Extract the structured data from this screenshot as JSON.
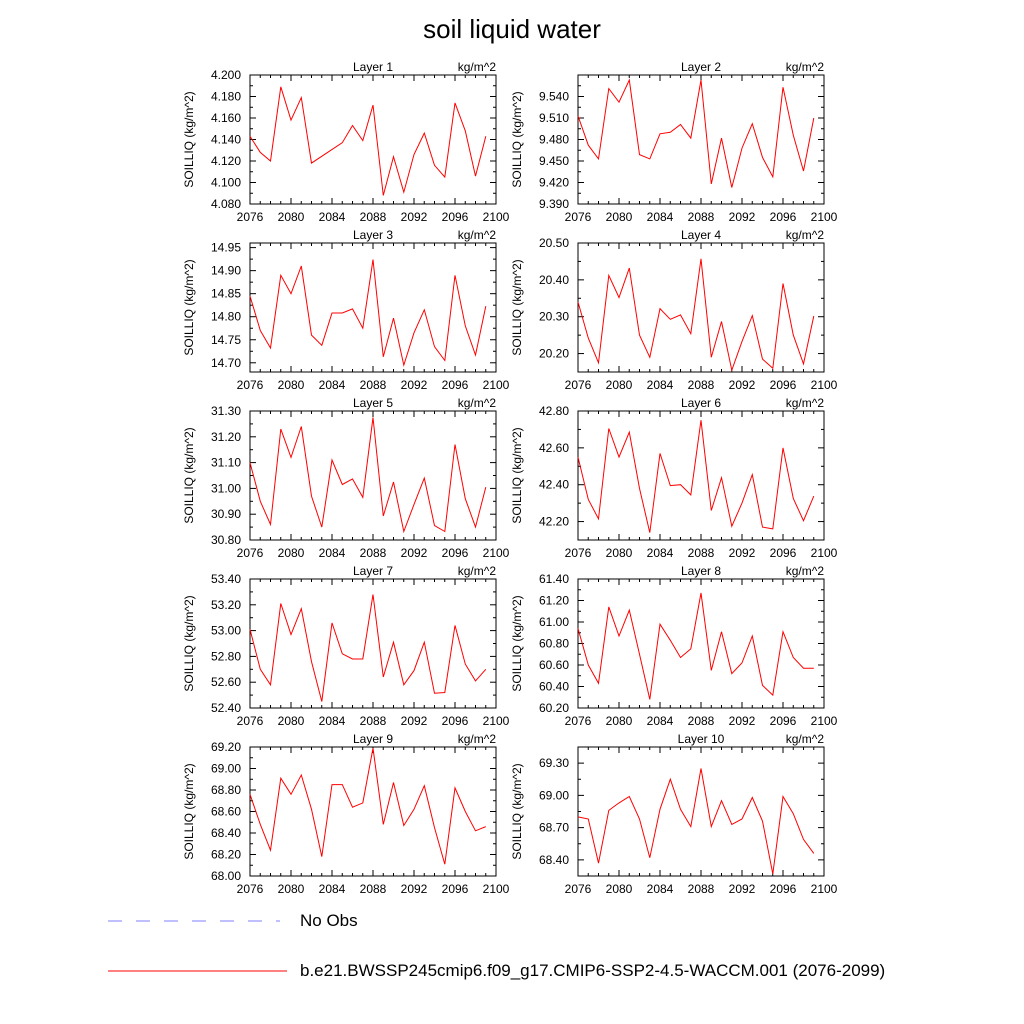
{
  "title": "soil liquid water",
  "colors": {
    "model_line": "#ff0000",
    "obs_line": "#8080ff",
    "axis": "#000000"
  },
  "legend": {
    "obs_label": "No Obs",
    "model_label": "b.e21.BWSSP245cmip6.f09_g17.CMIP6-SSP2-4.5-WACCM.001 (2076-2099)"
  },
  "chart_data": [
    {
      "type": "line",
      "title": "Layer 1",
      "units": "kg/m^2",
      "ylabel": "SOILLIQ  (kg/m^2)",
      "xlim": [
        2076,
        2100
      ],
      "xticks": [
        "2076",
        "2080",
        "2084",
        "2088",
        "2092",
        "2096",
        "2100"
      ],
      "ylim": [
        4.08,
        4.2
      ],
      "yticks": [
        "4.080",
        "4.100",
        "4.120",
        "4.140",
        "4.160",
        "4.180",
        "4.200"
      ],
      "x": [
        2076,
        2077,
        2078,
        2079,
        2080,
        2081,
        2082,
        2085,
        2086,
        2087,
        2088,
        2089,
        2090,
        2091,
        2092,
        2093,
        2094,
        2095,
        2096,
        2097,
        2098,
        2099
      ],
      "values": [
        4.143,
        4.128,
        4.12,
        4.189,
        4.158,
        4.179,
        4.118,
        4.137,
        4.153,
        4.139,
        4.172,
        4.088,
        4.124,
        4.091,
        4.126,
        4.146,
        4.116,
        4.105,
        4.174,
        4.148,
        4.106,
        4.143
      ]
    },
    {
      "type": "line",
      "title": "Layer 2",
      "units": "kg/m^2",
      "ylabel": "SOILLIQ  (kg/m^2)",
      "xlim": [
        2076,
        2100
      ],
      "xticks": [
        "2076",
        "2080",
        "2084",
        "2088",
        "2092",
        "2096",
        "2100"
      ],
      "ylim": [
        9.39,
        9.57
      ],
      "yticks": [
        "9.390",
        "9.420",
        "9.450",
        "9.480",
        "9.510",
        "9.540"
      ],
      "x": [
        2076,
        2077,
        2078,
        2079,
        2080,
        2081,
        2082,
        2083,
        2084,
        2085,
        2086,
        2087,
        2088,
        2089,
        2090,
        2091,
        2092,
        2093,
        2094,
        2095,
        2096,
        2097,
        2098,
        2099
      ],
      "values": [
        9.513,
        9.472,
        9.453,
        9.551,
        9.532,
        9.563,
        9.459,
        9.453,
        9.488,
        9.49,
        9.501,
        9.482,
        9.563,
        9.418,
        9.482,
        9.413,
        9.468,
        9.502,
        9.455,
        9.428,
        9.553,
        9.486,
        9.436,
        9.51
      ]
    },
    {
      "type": "line",
      "title": "Layer 3",
      "units": "kg/m^2",
      "ylabel": "SOILLIQ  (kg/m^2)",
      "xlim": [
        2076,
        2100
      ],
      "xticks": [
        "2076",
        "2080",
        "2084",
        "2088",
        "2092",
        "2096",
        "2100"
      ],
      "ylim": [
        14.68,
        14.96
      ],
      "yticks": [
        "14.70",
        "14.75",
        "14.80",
        "14.85",
        "14.90",
        "14.95"
      ],
      "x": [
        2076,
        2077,
        2078,
        2079,
        2080,
        2081,
        2082,
        2083,
        2084,
        2085,
        2086,
        2087,
        2088,
        2089,
        2090,
        2091,
        2092,
        2093,
        2094,
        2095,
        2096,
        2097,
        2098,
        2099
      ],
      "values": [
        14.845,
        14.77,
        14.732,
        14.89,
        14.85,
        14.91,
        14.76,
        14.738,
        14.808,
        14.808,
        14.817,
        14.775,
        14.924,
        14.713,
        14.797,
        14.695,
        14.765,
        14.815,
        14.735,
        14.705,
        14.89,
        14.78,
        14.717,
        14.823
      ]
    },
    {
      "type": "line",
      "title": "Layer 4",
      "units": "kg/m^2",
      "ylabel": "SOILLIQ  (kg/m^2)",
      "xlim": [
        2076,
        2100
      ],
      "xticks": [
        "2076",
        "2080",
        "2084",
        "2088",
        "2092",
        "2096",
        "2100"
      ],
      "ylim": [
        20.15,
        20.5
      ],
      "yticks": [
        "20.20",
        "20.30",
        "20.40",
        "20.50"
      ],
      "x": [
        2076,
        2077,
        2078,
        2079,
        2080,
        2081,
        2082,
        2083,
        2084,
        2085,
        2086,
        2087,
        2088,
        2089,
        2090,
        2091,
        2092,
        2093,
        2094,
        2095,
        2096,
        2097,
        2098,
        2099
      ],
      "values": [
        20.34,
        20.242,
        20.175,
        20.412,
        20.352,
        20.432,
        20.25,
        20.19,
        20.322,
        20.293,
        20.305,
        20.254,
        20.457,
        20.19,
        20.287,
        20.155,
        20.233,
        20.303,
        20.185,
        20.16,
        20.39,
        20.25,
        20.172,
        20.302
      ]
    },
    {
      "type": "line",
      "title": "Layer 5",
      "units": "kg/m^2",
      "ylabel": "SOILLIQ  (kg/m^2)",
      "xlim": [
        2076,
        2100
      ],
      "xticks": [
        "2076",
        "2080",
        "2084",
        "2088",
        "2092",
        "2096",
        "2100"
      ],
      "ylim": [
        30.8,
        31.3
      ],
      "yticks": [
        "30.80",
        "30.90",
        "31.00",
        "31.10",
        "31.20",
        "31.30"
      ],
      "x": [
        2076,
        2077,
        2078,
        2079,
        2080,
        2081,
        2082,
        2083,
        2084,
        2085,
        2086,
        2087,
        2088,
        2089,
        2090,
        2091,
        2092,
        2093,
        2094,
        2095,
        2096,
        2097,
        2098,
        2099
      ],
      "values": [
        31.1,
        30.95,
        30.86,
        31.23,
        31.12,
        31.24,
        30.97,
        30.85,
        31.11,
        31.015,
        31.037,
        30.965,
        31.275,
        30.893,
        31.025,
        30.833,
        30.938,
        31.04,
        30.856,
        30.833,
        31.17,
        30.96,
        30.85,
        31.005
      ]
    },
    {
      "type": "line",
      "title": "Layer 6",
      "units": "kg/m^2",
      "ylabel": "SOILLIQ  (kg/m^2)",
      "xlim": [
        2076,
        2100
      ],
      "xticks": [
        "2076",
        "2080",
        "2084",
        "2088",
        "2092",
        "2096",
        "2100"
      ],
      "ylim": [
        42.1,
        42.8
      ],
      "yticks": [
        "42.20",
        "42.40",
        "42.60",
        "42.80"
      ],
      "x": [
        2076,
        2077,
        2078,
        2079,
        2080,
        2081,
        2082,
        2083,
        2084,
        2085,
        2086,
        2087,
        2088,
        2089,
        2090,
        2091,
        2092,
        2093,
        2094,
        2095,
        2096,
        2097,
        2098,
        2099
      ],
      "values": [
        42.55,
        42.32,
        42.215,
        42.705,
        42.55,
        42.685,
        42.38,
        42.14,
        42.57,
        42.395,
        42.4,
        42.345,
        42.75,
        42.26,
        42.438,
        42.175,
        42.3,
        42.455,
        42.17,
        42.16,
        42.6,
        42.325,
        42.205,
        42.338
      ]
    },
    {
      "type": "line",
      "title": "Layer 7",
      "units": "kg/m^2",
      "ylabel": "SOILLIQ  (kg/m^2)",
      "xlim": [
        2076,
        2100
      ],
      "xticks": [
        "2076",
        "2080",
        "2084",
        "2088",
        "2092",
        "2096",
        "2100"
      ],
      "ylim": [
        52.4,
        53.4
      ],
      "yticks": [
        "52.40",
        "52.60",
        "52.80",
        "53.00",
        "53.20",
        "53.40"
      ],
      "x": [
        2076,
        2077,
        2078,
        2079,
        2080,
        2081,
        2082,
        2083,
        2084,
        2085,
        2086,
        2087,
        2088,
        2089,
        2090,
        2091,
        2092,
        2093,
        2094,
        2095,
        2096,
        2097,
        2098,
        2099
      ],
      "values": [
        53.01,
        52.7,
        52.58,
        53.21,
        52.97,
        53.17,
        52.76,
        52.45,
        53.06,
        52.82,
        52.78,
        52.78,
        53.28,
        52.64,
        52.91,
        52.58,
        52.69,
        52.91,
        52.515,
        52.52,
        53.04,
        52.74,
        52.61,
        52.7
      ]
    },
    {
      "type": "line",
      "title": "Layer 8",
      "units": "kg/m^2",
      "ylabel": "SOILLIQ  (kg/m^2)",
      "xlim": [
        2076,
        2100
      ],
      "xticks": [
        "2076",
        "2080",
        "2084",
        "2088",
        "2092",
        "2096",
        "2100"
      ],
      "ylim": [
        60.2,
        61.4
      ],
      "yticks": [
        "60.20",
        "60.40",
        "60.60",
        "60.80",
        "61.00",
        "61.20",
        "61.40"
      ],
      "x": [
        2076,
        2077,
        2078,
        2079,
        2080,
        2081,
        2082,
        2083,
        2084,
        2085,
        2086,
        2087,
        2088,
        2089,
        2090,
        2091,
        2092,
        2093,
        2094,
        2095,
        2096,
        2097,
        2098,
        2099
      ],
      "values": [
        60.94,
        60.6,
        60.43,
        61.14,
        60.87,
        61.11,
        60.7,
        60.28,
        60.98,
        60.83,
        60.67,
        60.75,
        61.27,
        60.55,
        60.91,
        60.52,
        60.62,
        60.87,
        60.41,
        60.32,
        60.91,
        60.67,
        60.57,
        60.57
      ]
    },
    {
      "type": "line",
      "title": "Layer 9",
      "units": "kg/m^2",
      "ylabel": "SOILLIQ  (kg/m^2)",
      "xlim": [
        2076,
        2100
      ],
      "xticks": [
        "2076",
        "2080",
        "2084",
        "2088",
        "2092",
        "2096",
        "2100"
      ],
      "ylim": [
        68.0,
        69.2
      ],
      "yticks": [
        "68.00",
        "68.20",
        "68.40",
        "68.60",
        "68.80",
        "69.00",
        "69.20"
      ],
      "x": [
        2076,
        2077,
        2078,
        2079,
        2080,
        2081,
        2082,
        2083,
        2084,
        2085,
        2086,
        2087,
        2088,
        2089,
        2090,
        2091,
        2092,
        2093,
        2094,
        2095,
        2096,
        2097,
        2098,
        2099
      ],
      "values": [
        68.76,
        68.48,
        68.24,
        68.91,
        68.76,
        68.94,
        68.62,
        68.18,
        68.85,
        68.85,
        68.64,
        68.68,
        69.19,
        68.48,
        68.87,
        68.47,
        68.62,
        68.84,
        68.45,
        68.11,
        68.82,
        68.6,
        68.42,
        68.46
      ]
    },
    {
      "type": "line",
      "title": "Layer 10",
      "units": "kg/m^2",
      "ylabel": "SOILLIQ  (kg/m^2)",
      "xlim": [
        2076,
        2100
      ],
      "xticks": [
        "2076",
        "2080",
        "2084",
        "2088",
        "2092",
        "2096",
        "2100"
      ],
      "ylim": [
        68.25,
        69.45
      ],
      "yticks": [
        "68.40",
        "68.70",
        "69.00",
        "69.30"
      ],
      "x": [
        2076,
        2077,
        2078,
        2079,
        2080,
        2081,
        2082,
        2083,
        2084,
        2085,
        2086,
        2087,
        2088,
        2089,
        2090,
        2091,
        2092,
        2093,
        2094,
        2095,
        2096,
        2097,
        2098,
        2099
      ],
      "values": [
        68.8,
        68.78,
        68.37,
        68.86,
        68.93,
        68.99,
        68.78,
        68.42,
        68.87,
        69.15,
        68.87,
        68.71,
        69.25,
        68.71,
        68.95,
        68.73,
        68.78,
        68.98,
        68.76,
        68.27,
        68.99,
        68.83,
        68.59,
        68.46
      ]
    }
  ]
}
